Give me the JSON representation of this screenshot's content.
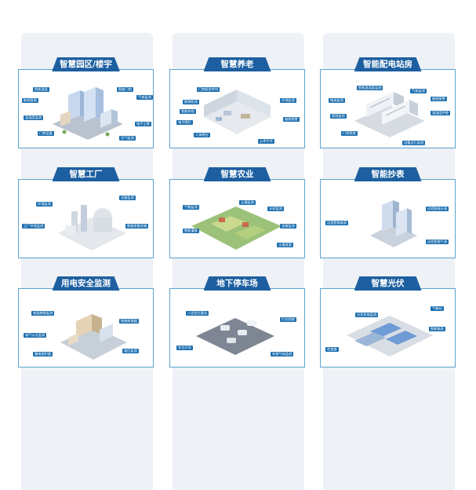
{
  "cards": [
    {
      "title": "智慧园区/楼宇",
      "labels": [
        "智能温度",
        "能耗管理",
        "温湿度监测",
        "气体监测",
        "智能门锁",
        "电子工牌",
        "门禁设备",
        "空气监测"
      ]
    },
    {
      "title": "智慧养老",
      "labels": [
        "门禁紧急呼叫",
        "跌倒检测",
        "智能床垫",
        "电子围栏",
        "人体感应",
        "心率手环",
        "环境监测",
        "烟感报警"
      ]
    },
    {
      "title": "智能配电站房",
      "labels": [
        "智能温湿度监测",
        "气体监测",
        "烟感报警",
        "电流监测",
        "门禁系统",
        "视频监控",
        "设备运行监测",
        "温湿度传感"
      ]
    },
    {
      "title": "智慧工厂",
      "labels": [
        "环境监测",
        "工厂环境监测",
        "设备监测",
        "数据采集终端"
      ]
    },
    {
      "title": "智慧农业",
      "labels": [
        "气象监测",
        "土壤监测",
        "水质监测",
        "虫情监测",
        "智能灌溉",
        "土壤温湿"
      ]
    },
    {
      "title": "智能抄表",
      "labels": [
        "远程智能电表",
        "远程智能水表",
        "远程智能气表"
      ]
    },
    {
      "title": "用电安全监测",
      "labels": [
        "电弧故障监测",
        "智能断路器",
        "电气火灾监测",
        "漏电保护器",
        "电压监测"
      ]
    },
    {
      "title": "地下停车场",
      "labels": [
        "人员定位基站",
        "灯光控制",
        "车位引导",
        "有害气体监测"
      ]
    },
    {
      "title": "智慧光伏",
      "labels": [
        "光伏发电监测",
        "逆变器",
        "智能电表",
        "气象站"
      ]
    }
  ],
  "colors": {
    "tab": "#1d5fa0",
    "border": "#5ba3cf",
    "label": "#1d6fb0",
    "column": "#eef1f6"
  }
}
